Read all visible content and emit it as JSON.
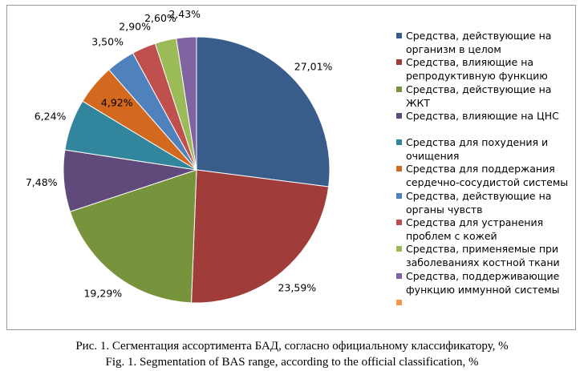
{
  "chart_data": {
    "type": "pie",
    "categories": [
      "Средства, действующие на организм в целом",
      "Средства, влияющие на репродуктивную функцию",
      "Средства, действующие на ЖКТ",
      "Средства, влияющие на ЦНС",
      "Средства для похудения и очищения",
      "Средства для поддержания сердечно-сосудистой системы",
      "Средства, действующие на органы чувств",
      "Средства для устранения проблем с кожей",
      "Средства, применяемые при заболеваниях костной ткани",
      "Средства, поддерживающие функцию иммунной системы",
      null
    ],
    "values": [
      27.01,
      23.59,
      19.29,
      7.48,
      6.24,
      4.92,
      3.5,
      2.9,
      2.6,
      2.43,
      null
    ],
    "value_labels": [
      "27,01%",
      "23,59%",
      "19,29%",
      "7,48%",
      "6,24%",
      "4,92%",
      "3,50%",
      "2,90%",
      "2,60%",
      "2,43%",
      null
    ],
    "colors": [
      "#385D8A",
      "#A03C3A",
      "#77933C",
      "#5F4A7B",
      "#31859C",
      "#D2691E",
      "#4F81BD",
      "#C0504D",
      "#9BBB59",
      "#8064A2",
      "#F79646"
    ],
    "legend": "right",
    "caption": [
      "Рис. 1. Сегментация ассортимента БАД, согласно официальному классификатору, %",
      "Fig. 1. Segmentation of BAS range, according to the official classification, %"
    ]
  }
}
